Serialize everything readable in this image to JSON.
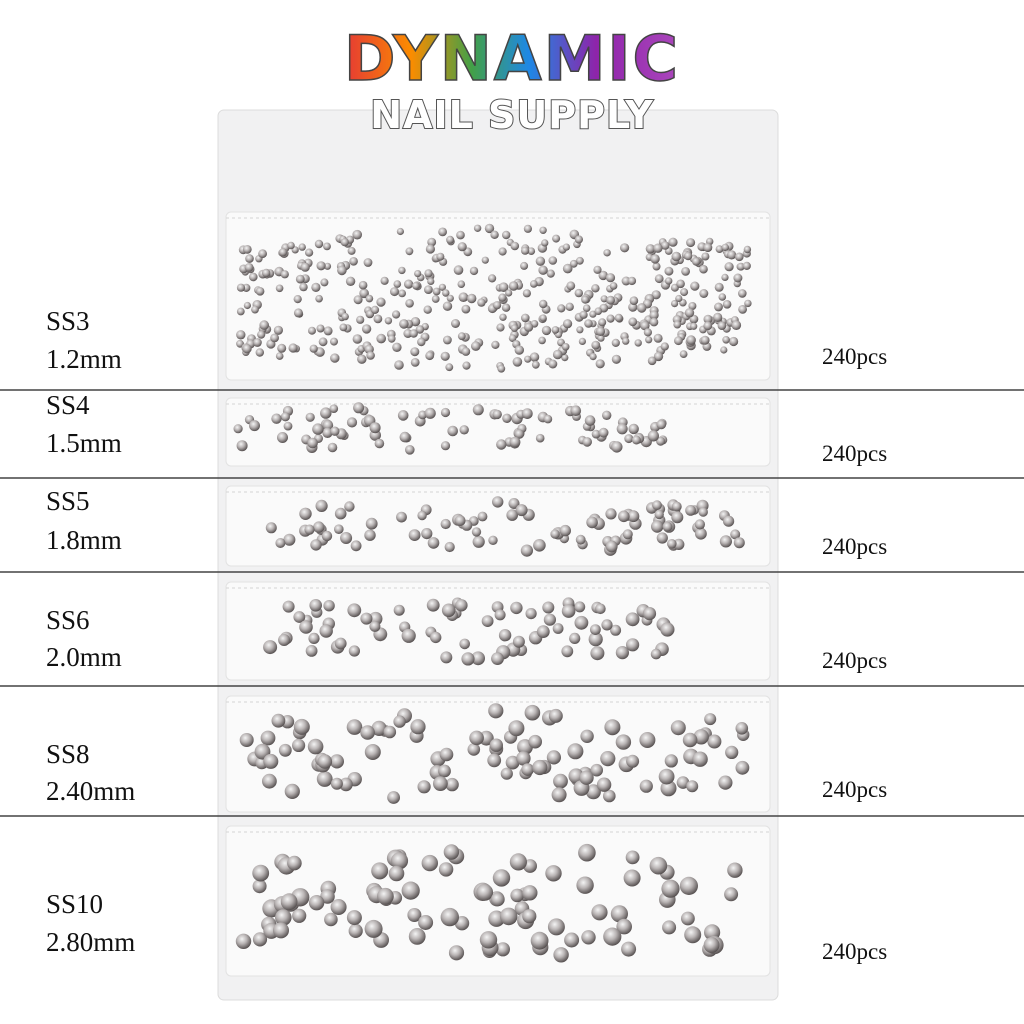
{
  "brand": {
    "line1": "DYNAMIC",
    "line2": "NAIL SUPPLY"
  },
  "rows": [
    {
      "size": "SS3",
      "mm": "1.2mm",
      "count": "240pcs"
    },
    {
      "size": "SS4",
      "mm": "1.5mm",
      "count": "240pcs"
    },
    {
      "size": "SS5",
      "mm": "1.8mm",
      "count": "240pcs"
    },
    {
      "size": "SS6",
      "mm": "2.0mm",
      "count": "240pcs"
    },
    {
      "size": "SS8",
      "mm": "2.40mm",
      "count": "240pcs"
    },
    {
      "size": "SS10",
      "mm": "2.80mm",
      "count": "240pcs"
    }
  ]
}
